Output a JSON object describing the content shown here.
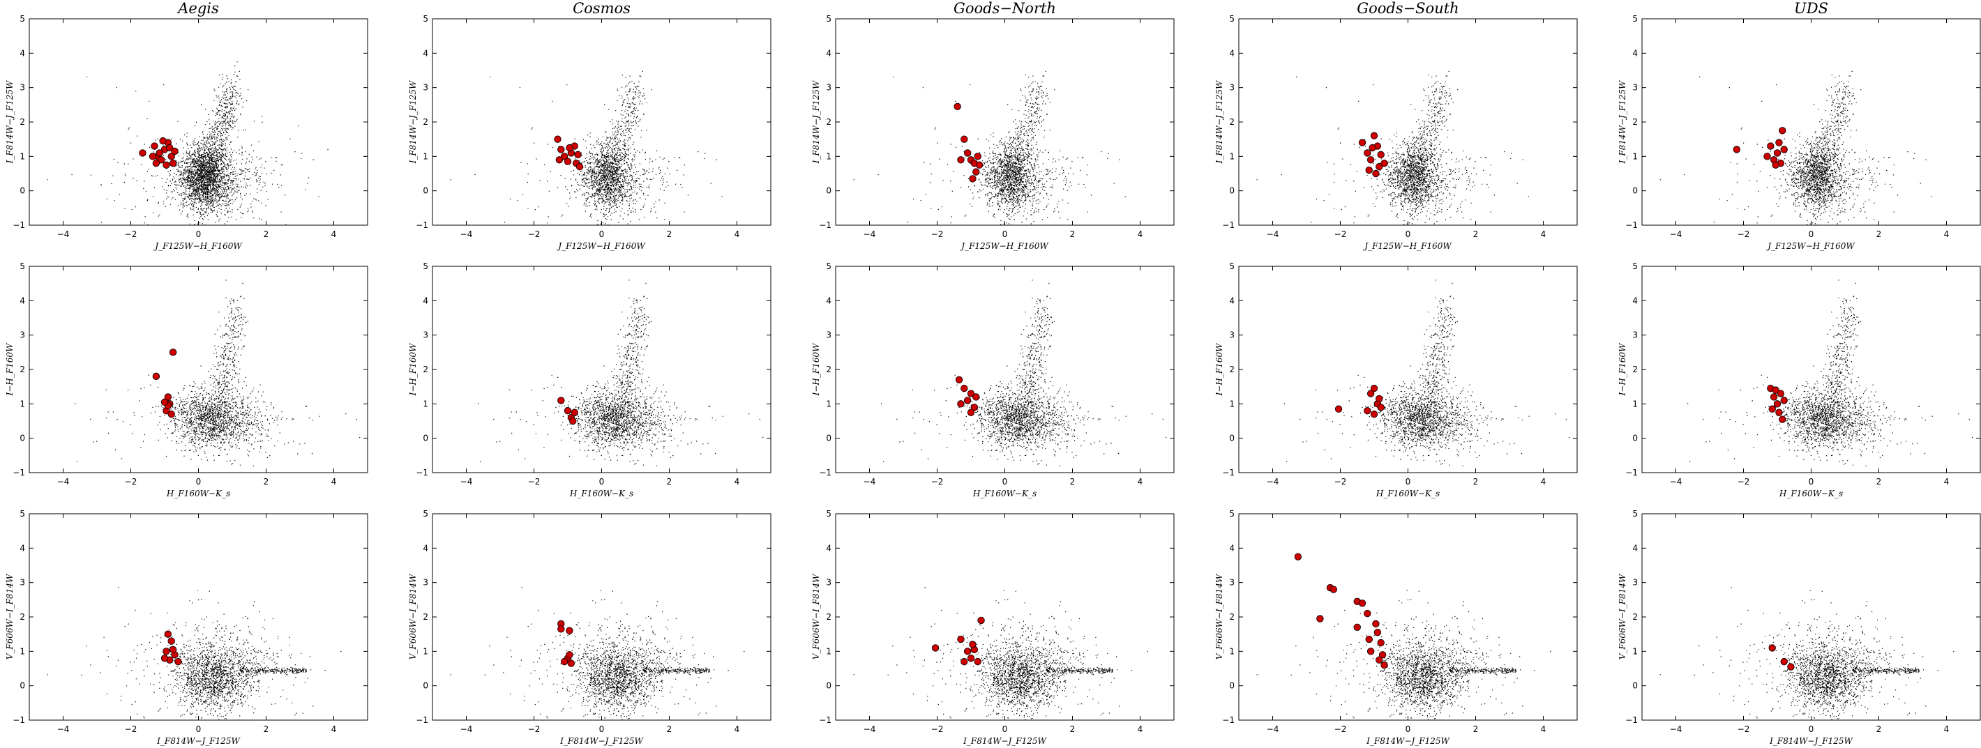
{
  "chart_data": {
    "type": "scatter",
    "columns": [
      "Aegis",
      "Cosmos",
      "Goods−North",
      "Goods−South",
      "UDS"
    ],
    "rows": [
      {
        "xlabel": "J_F125W−H_F160W",
        "ylabel": "I_F814W−J_F125W"
      },
      {
        "xlabel": "H_F160W−K_s",
        "ylabel": "I−H_F160W"
      },
      {
        "xlabel": "I_F814W−J_F125W",
        "ylabel": "V_F606W−I_F814W"
      }
    ],
    "xlim": [
      -5,
      5
    ],
    "ylim": [
      -1,
      5
    ],
    "xticks": [
      "−4",
      "−2",
      "0",
      "2",
      "4"
    ],
    "yticks": [
      "−1",
      "0",
      "1",
      "2",
      "3",
      "4",
      "5"
    ],
    "series": [
      {
        "name": "",
        "role": "all sources",
        "color": "#000000",
        "marker": "dot"
      },
      {
        "name": "",
        "role": "selected candidates",
        "color": "#cc0000",
        "edge": "#000000",
        "marker": "circle"
      }
    ],
    "highlighted_points": [
      [
        {
          "column": "Aegis",
          "row": 1,
          "points": [
            [
              -1.65,
              1.1
            ],
            [
              -1.3,
              1.3
            ],
            [
              -1.2,
              1.0
            ],
            [
              -1.1,
              0.9
            ],
            [
              -1.0,
              1.2
            ],
            [
              -0.9,
              1.4
            ],
            [
              -0.8,
              1.0
            ],
            [
              -0.75,
              0.8
            ],
            [
              -1.25,
              0.8
            ],
            [
              -1.05,
              1.45
            ],
            [
              -0.85,
              1.25
            ],
            [
              -1.15,
              1.1
            ],
            [
              -0.95,
              0.75
            ],
            [
              -0.7,
              1.15
            ],
            [
              -1.35,
              1.0
            ]
          ]
        },
        {
          "column": "Cosmos",
          "row": 1,
          "points": [
            [
              -1.3,
              1.5
            ],
            [
              -1.2,
              1.2
            ],
            [
              -1.1,
              1.0
            ],
            [
              -1.0,
              0.85
            ],
            [
              -0.9,
              1.1
            ],
            [
              -0.8,
              1.3
            ],
            [
              -0.75,
              0.8
            ],
            [
              -0.7,
              1.05
            ],
            [
              -1.25,
              0.9
            ],
            [
              -0.95,
              1.25
            ],
            [
              -0.65,
              0.7
            ]
          ]
        },
        {
          "column": "Goods−North",
          "row": 1,
          "points": [
            [
              -1.4,
              2.45
            ],
            [
              -1.2,
              1.5
            ],
            [
              -1.1,
              1.1
            ],
            [
              -1.0,
              0.9
            ],
            [
              -0.9,
              0.8
            ],
            [
              -0.8,
              1.0
            ],
            [
              -0.85,
              0.55
            ],
            [
              -0.95,
              0.35
            ],
            [
              -1.3,
              0.9
            ],
            [
              -0.75,
              0.75
            ]
          ]
        },
        {
          "column": "Goods−South",
          "row": 1,
          "points": [
            [
              -1.35,
              1.4
            ],
            [
              -1.2,
              1.1
            ],
            [
              -1.1,
              0.9
            ],
            [
              -1.0,
              1.6
            ],
            [
              -0.9,
              1.3
            ],
            [
              -0.85,
              0.7
            ],
            [
              -0.8,
              1.05
            ],
            [
              -0.7,
              0.8
            ],
            [
              -1.15,
              0.6
            ],
            [
              -0.95,
              0.5
            ],
            [
              -1.05,
              1.25
            ]
          ]
        },
        {
          "column": "UDS",
          "row": 1,
          "points": [
            [
              -2.2,
              1.2
            ],
            [
              -1.3,
              1.0
            ],
            [
              -1.2,
              1.3
            ],
            [
              -1.1,
              0.9
            ],
            [
              -1.0,
              1.1
            ],
            [
              -0.9,
              0.8
            ],
            [
              -0.8,
              1.2
            ],
            [
              -0.85,
              1.75
            ],
            [
              -0.95,
              1.4
            ],
            [
              -1.05,
              0.75
            ]
          ]
        }
      ],
      [
        {
          "column": "Aegis",
          "row": 2,
          "points": [
            [
              -1.25,
              1.8
            ],
            [
              -0.75,
              2.5
            ],
            [
              -0.9,
              1.2
            ],
            [
              -0.95,
              0.8
            ],
            [
              -0.85,
              1.0
            ],
            [
              -0.8,
              0.7
            ],
            [
              -0.9,
              0.95
            ],
            [
              -1.0,
              1.05
            ]
          ]
        },
        {
          "column": "Cosmos",
          "row": 2,
          "points": [
            [
              -1.2,
              1.1
            ],
            [
              -1.0,
              0.8
            ],
            [
              -0.9,
              0.6
            ],
            [
              -0.8,
              0.75
            ],
            [
              -0.85,
              0.5
            ]
          ]
        },
        {
          "column": "Goods−North",
          "row": 2,
          "points": [
            [
              -1.35,
              1.7
            ],
            [
              -1.2,
              1.45
            ],
            [
              -1.1,
              1.1
            ],
            [
              -1.0,
              1.3
            ],
            [
              -0.9,
              0.9
            ],
            [
              -1.3,
              1.0
            ],
            [
              -1.0,
              0.75
            ],
            [
              -0.85,
              1.2
            ]
          ]
        },
        {
          "column": "Goods−South",
          "row": 2,
          "points": [
            [
              -2.05,
              0.85
            ],
            [
              -1.1,
              1.3
            ],
            [
              -1.0,
              1.45
            ],
            [
              -0.9,
              1.0
            ],
            [
              -0.8,
              0.9
            ],
            [
              -1.2,
              0.8
            ],
            [
              -1.0,
              0.7
            ],
            [
              -0.85,
              1.15
            ]
          ]
        },
        {
          "column": "UDS",
          "row": 2,
          "points": [
            [
              -1.2,
              1.45
            ],
            [
              -1.1,
              1.2
            ],
            [
              -1.0,
              1.0
            ],
            [
              -0.9,
              1.3
            ],
            [
              -0.8,
              1.1
            ],
            [
              -0.95,
              0.75
            ],
            [
              -1.15,
              0.85
            ],
            [
              -0.85,
              0.55
            ],
            [
              -1.05,
              1.4
            ]
          ]
        }
      ],
      [
        {
          "column": "Aegis",
          "row": 3,
          "points": [
            [
              -0.9,
              1.5
            ],
            [
              -0.8,
              1.3
            ],
            [
              -0.95,
              1.0
            ],
            [
              -0.85,
              0.75
            ],
            [
              -0.7,
              0.9
            ],
            [
              -0.6,
              0.7
            ],
            [
              -1.0,
              0.8
            ],
            [
              -0.75,
              1.05
            ]
          ]
        },
        {
          "column": "Cosmos",
          "row": 3,
          "points": [
            [
              -1.2,
              1.8
            ],
            [
              -1.2,
              1.65
            ],
            [
              -0.95,
              1.6
            ],
            [
              -1.0,
              0.8
            ],
            [
              -0.9,
              0.65
            ],
            [
              -1.1,
              0.7
            ],
            [
              -0.95,
              0.9
            ]
          ]
        },
        {
          "column": "Goods−North",
          "row": 3,
          "points": [
            [
              -2.05,
              1.1
            ],
            [
              -1.3,
              1.35
            ],
            [
              -1.1,
              1.0
            ],
            [
              -1.0,
              0.8
            ],
            [
              -0.9,
              1.05
            ],
            [
              -0.8,
              0.7
            ],
            [
              -0.7,
              1.9
            ],
            [
              -1.2,
              0.7
            ],
            [
              -0.95,
              1.2
            ]
          ]
        },
        {
          "column": "Goods−South",
          "row": 3,
          "points": [
            [
              -3.25,
              3.75
            ],
            [
              -2.3,
              2.85
            ],
            [
              -2.2,
              2.8
            ],
            [
              -2.6,
              1.95
            ],
            [
              -1.5,
              2.45
            ],
            [
              -1.35,
              2.4
            ],
            [
              -1.2,
              2.1
            ],
            [
              -1.5,
              1.7
            ],
            [
              -1.15,
              1.35
            ],
            [
              -0.95,
              1.8
            ],
            [
              -0.9,
              1.55
            ],
            [
              -0.8,
              1.25
            ],
            [
              -0.75,
              0.9
            ],
            [
              -1.1,
              1.0
            ],
            [
              -0.7,
              0.6
            ],
            [
              -0.85,
              0.75
            ]
          ]
        },
        {
          "column": "UDS",
          "row": 3,
          "points": [
            [
              -1.15,
              1.1
            ],
            [
              -0.8,
              0.7
            ],
            [
              -0.6,
              0.55
            ]
          ]
        }
      ]
    ]
  },
  "colors": {
    "background": "#ffffff",
    "dots": "#000000",
    "highlight": "#cc0000"
  }
}
